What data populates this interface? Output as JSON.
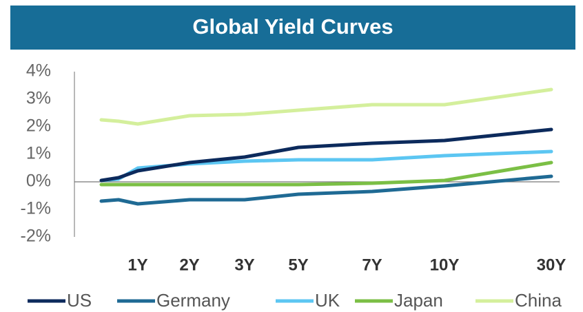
{
  "chart_data": {
    "type": "line",
    "title": "Global Yield Curves",
    "categories": [
      null,
      null,
      "1Y",
      "2Y",
      "3Y",
      "5Y",
      "7Y",
      "10Y",
      "30Y"
    ],
    "series": [
      {
        "name": "US",
        "color": "#0c2a5c",
        "values": [
          0.05,
          0.15,
          0.4,
          0.7,
          0.9,
          1.25,
          1.4,
          1.5,
          1.9
        ]
      },
      {
        "name": "Germany",
        "color": "#1f6a94",
        "values": [
          -0.7,
          -0.65,
          -0.8,
          -0.65,
          -0.65,
          -0.45,
          -0.35,
          -0.15,
          0.2
        ]
      },
      {
        "name": "UK",
        "color": "#5cc6f2",
        "values": [
          0.05,
          0.1,
          0.5,
          0.65,
          0.75,
          0.8,
          0.8,
          0.95,
          1.1
        ]
      },
      {
        "name": "Japan",
        "color": "#7bbf45",
        "values": [
          -0.1,
          -0.1,
          -0.1,
          -0.1,
          -0.1,
          -0.1,
          -0.05,
          0.05,
          0.7
        ]
      },
      {
        "name": "China",
        "color": "#d4ef9c",
        "values": [
          2.25,
          2.2,
          2.1,
          2.4,
          2.45,
          2.6,
          2.8,
          2.8,
          3.35
        ]
      }
    ],
    "ylim": [
      -2,
      4
    ],
    "yticks": [
      {
        "value": -2,
        "label": "-2%"
      },
      {
        "value": -1,
        "label": "-1%"
      },
      {
        "value": 0,
        "label": "0%"
      },
      {
        "value": 1,
        "label": "1%"
      },
      {
        "value": 2,
        "label": "2%"
      },
      {
        "value": 3,
        "label": "3%"
      },
      {
        "value": 4,
        "label": "4%"
      }
    ],
    "grid": false,
    "legend": "bottom"
  }
}
